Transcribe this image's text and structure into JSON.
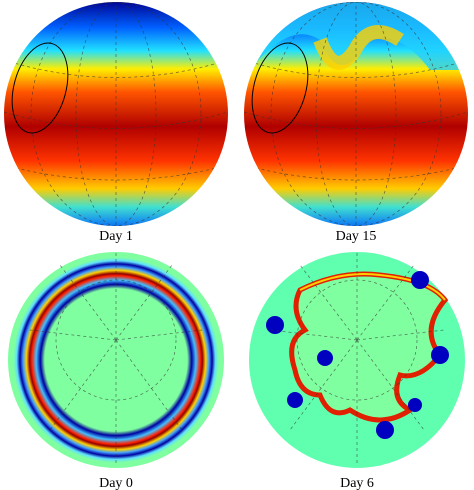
{
  "panels": [
    {
      "label": "Day 1"
    },
    {
      "label": "Day 15"
    },
    {
      "label": "Day 0"
    },
    {
      "label": "Day 6"
    }
  ]
}
